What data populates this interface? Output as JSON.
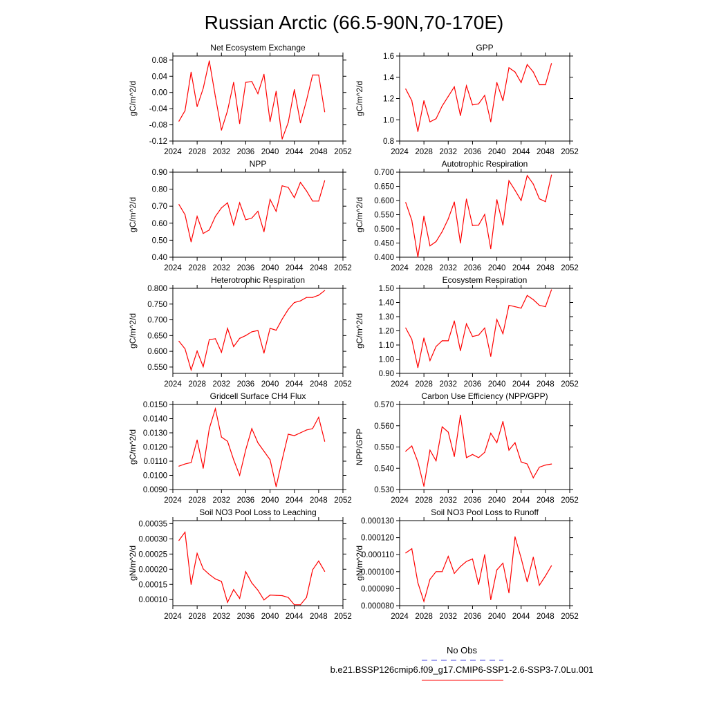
{
  "figure": {
    "title": "Russian Arctic (66.5-90N,70-170E)",
    "line_color": "#ff0000",
    "obs_color": "#4a4ae0"
  },
  "legend": {
    "obs_label": "No Obs",
    "case_label": "b.e21.BSSP126cmip6.f09_g17.CMIP6-SSP1-2.6-SSP3-7.0Lu.001"
  },
  "chart_data": [
    {
      "type": "line",
      "title": "Net Ecosystem Exchange",
      "ylabel": "gC/m^2/d",
      "xlim": [
        2024,
        2052
      ],
      "ylim": [
        -0.12,
        0.09
      ],
      "yticks": [
        "-0.12",
        "-0.08",
        "-0.04",
        "0.00",
        "0.04",
        "0.08"
      ],
      "xticks": [
        "2024",
        "2028",
        "2032",
        "2036",
        "2040",
        "2044",
        "2048",
        "2052"
      ],
      "x": [
        2025,
        2026,
        2027,
        2028,
        2029,
        2030,
        2031,
        2032,
        2033,
        2034,
        2035,
        2036,
        2037,
        2038,
        2039,
        2040,
        2041,
        2042,
        2043,
        2044,
        2045,
        2046,
        2047,
        2048,
        2049
      ],
      "y": [
        -0.071,
        -0.045,
        0.05,
        -0.035,
        0.01,
        0.078,
        -0.01,
        -0.093,
        -0.045,
        0.025,
        -0.077,
        0.025,
        0.027,
        -0.003,
        0.045,
        -0.072,
        0.003,
        -0.115,
        -0.074,
        0.007,
        -0.075,
        -0.02,
        0.043,
        0.043,
        -0.048
      ]
    },
    {
      "type": "line",
      "title": "GPP",
      "ylabel": "gC/m^2/d",
      "xlim": [
        2024,
        2052
      ],
      "ylim": [
        0.8,
        1.6
      ],
      "yticks": [
        "0.8",
        "1.0",
        "1.2",
        "1.4",
        "1.6"
      ],
      "xticks": [
        "2024",
        "2028",
        "2032",
        "2036",
        "2040",
        "2044",
        "2048",
        "2052"
      ],
      "x": [
        2025,
        2026,
        2027,
        2028,
        2029,
        2030,
        2031,
        2032,
        2033,
        2034,
        2035,
        2036,
        2037,
        2038,
        2039,
        2040,
        2041,
        2042,
        2043,
        2044,
        2045,
        2046,
        2047,
        2048,
        2049
      ],
      "y": [
        1.29,
        1.18,
        0.89,
        1.18,
        0.98,
        1.01,
        1.13,
        1.22,
        1.31,
        1.04,
        1.32,
        1.14,
        1.15,
        1.23,
        0.98,
        1.35,
        1.18,
        1.49,
        1.45,
        1.35,
        1.52,
        1.45,
        1.33,
        1.33,
        1.53
      ]
    },
    {
      "type": "line",
      "title": "NPP",
      "ylabel": "gC/m^2/d",
      "xlim": [
        2024,
        2052
      ],
      "ylim": [
        0.4,
        0.9
      ],
      "yticks": [
        "0.40",
        "0.50",
        "0.60",
        "0.70",
        "0.80",
        "0.90"
      ],
      "xticks": [
        "2024",
        "2028",
        "2032",
        "2036",
        "2040",
        "2044",
        "2048",
        "2052"
      ],
      "x": [
        2025,
        2026,
        2027,
        2028,
        2029,
        2030,
        2031,
        2032,
        2033,
        2034,
        2035,
        2036,
        2037,
        2038,
        2039,
        2040,
        2041,
        2042,
        2043,
        2044,
        2045,
        2046,
        2047,
        2048,
        2049
      ],
      "y": [
        0.71,
        0.65,
        0.49,
        0.64,
        0.54,
        0.56,
        0.64,
        0.69,
        0.72,
        0.59,
        0.72,
        0.62,
        0.63,
        0.67,
        0.55,
        0.74,
        0.67,
        0.82,
        0.81,
        0.75,
        0.84,
        0.79,
        0.73,
        0.73,
        0.85
      ]
    },
    {
      "type": "line",
      "title": "Autotrophic Respiration",
      "ylabel": "gC/m^2/d",
      "xlim": [
        2024,
        2052
      ],
      "ylim": [
        0.4,
        0.7
      ],
      "yticks": [
        "0.400",
        "0.450",
        "0.500",
        "0.550",
        "0.600",
        "0.650",
        "0.700"
      ],
      "xticks": [
        "2024",
        "2028",
        "2032",
        "2036",
        "2040",
        "2044",
        "2048",
        "2052"
      ],
      "x": [
        2025,
        2026,
        2027,
        2028,
        2029,
        2030,
        2031,
        2032,
        2033,
        2034,
        2035,
        2036,
        2037,
        2038,
        2039,
        2040,
        2041,
        2042,
        2043,
        2044,
        2045,
        2046,
        2047,
        2048,
        2049
      ],
      "y": [
        0.593,
        0.53,
        0.4,
        0.545,
        0.44,
        0.455,
        0.49,
        0.535,
        0.595,
        0.45,
        0.605,
        0.512,
        0.513,
        0.551,
        0.43,
        0.603,
        0.513,
        0.67,
        0.636,
        0.6,
        0.688,
        0.658,
        0.606,
        0.596,
        0.69
      ]
    },
    {
      "type": "line",
      "title": "Heterotrophic Respiration",
      "ylabel": "gC/m^2/d",
      "xlim": [
        2024,
        2052
      ],
      "ylim": [
        0.53,
        0.8
      ],
      "yticks": [
        "0.550",
        "0.600",
        "0.650",
        "0.700",
        "0.750",
        "0.800"
      ],
      "xticks": [
        "2024",
        "2028",
        "2032",
        "2036",
        "2040",
        "2044",
        "2048",
        "2052"
      ],
      "x": [
        2025,
        2026,
        2027,
        2028,
        2029,
        2030,
        2031,
        2032,
        2033,
        2034,
        2035,
        2036,
        2037,
        2038,
        2039,
        2040,
        2041,
        2042,
        2043,
        2044,
        2045,
        2046,
        2047,
        2048,
        2049
      ],
      "y": [
        0.632,
        0.608,
        0.541,
        0.601,
        0.551,
        0.637,
        0.64,
        0.597,
        0.673,
        0.615,
        0.641,
        0.65,
        0.662,
        0.666,
        0.594,
        0.673,
        0.667,
        0.702,
        0.733,
        0.755,
        0.76,
        0.771,
        0.771,
        0.778,
        0.793
      ]
    },
    {
      "type": "line",
      "title": "Ecosystem Respiration",
      "ylabel": "gC/m^2/d",
      "xlim": [
        2024,
        2052
      ],
      "ylim": [
        0.9,
        1.5
      ],
      "yticks": [
        "0.90",
        "1.00",
        "1.10",
        "1.20",
        "1.30",
        "1.40",
        "1.50"
      ],
      "xticks": [
        "2024",
        "2028",
        "2032",
        "2036",
        "2040",
        "2044",
        "2048",
        "2052"
      ],
      "x": [
        2025,
        2026,
        2027,
        2028,
        2029,
        2030,
        2031,
        2032,
        2033,
        2034,
        2035,
        2036,
        2037,
        2038,
        2039,
        2040,
        2041,
        2042,
        2043,
        2044,
        2045,
        2046,
        2047,
        2048,
        2049
      ],
      "y": [
        1.22,
        1.14,
        0.94,
        1.15,
        0.99,
        1.09,
        1.13,
        1.13,
        1.27,
        1.06,
        1.25,
        1.16,
        1.17,
        1.22,
        1.02,
        1.28,
        1.18,
        1.38,
        1.37,
        1.36,
        1.45,
        1.42,
        1.38,
        1.37,
        1.49
      ]
    },
    {
      "type": "line",
      "title": "Gridcell Surface CH4 Flux",
      "ylabel": "gC/m^2/d",
      "xlim": [
        2024,
        2052
      ],
      "ylim": [
        0.009,
        0.015
      ],
      "yticks": [
        "0.0090",
        "0.0100",
        "0.0110",
        "0.0120",
        "0.0130",
        "0.0140",
        "0.0150"
      ],
      "xticks": [
        "2024",
        "2028",
        "2032",
        "2036",
        "2040",
        "2044",
        "2048",
        "2052"
      ],
      "x": [
        2025,
        2026,
        2027,
        2028,
        2029,
        2030,
        2031,
        2032,
        2033,
        2034,
        2035,
        2036,
        2037,
        2038,
        2039,
        2040,
        2041,
        2042,
        2043,
        2044,
        2045,
        2046,
        2047,
        2048,
        2049
      ],
      "y": [
        0.01065,
        0.0108,
        0.0109,
        0.0125,
        0.0105,
        0.0133,
        0.0147,
        0.0127,
        0.0124,
        0.0111,
        0.01,
        0.0118,
        0.0133,
        0.0123,
        0.0117,
        0.0111,
        0.0092,
        0.0111,
        0.0129,
        0.0128,
        0.013,
        0.0132,
        0.0133,
        0.0141,
        0.0124
      ]
    },
    {
      "type": "line",
      "title": "Carbon Use Efficiency (NPP/GPP)",
      "ylabel": "NPP/GPP",
      "xlim": [
        2024,
        2052
      ],
      "ylim": [
        0.53,
        0.57
      ],
      "yticks": [
        "0.530",
        "0.540",
        "0.550",
        "0.560",
        "0.570"
      ],
      "xticks": [
        "2024",
        "2028",
        "2032",
        "2036",
        "2040",
        "2044",
        "2048",
        "2052"
      ],
      "x": [
        2025,
        2026,
        2027,
        2028,
        2029,
        2030,
        2031,
        2032,
        2033,
        2034,
        2035,
        2036,
        2037,
        2038,
        2039,
        2040,
        2041,
        2042,
        2043,
        2044,
        2045,
        2046,
        2047,
        2048,
        2049
      ],
      "y": [
        0.548,
        0.5505,
        0.543,
        0.5315,
        0.5485,
        0.5435,
        0.5595,
        0.557,
        0.5455,
        0.565,
        0.545,
        0.5465,
        0.545,
        0.5475,
        0.5565,
        0.552,
        0.562,
        0.5485,
        0.552,
        0.543,
        0.542,
        0.5355,
        0.5405,
        0.5415,
        0.542
      ]
    },
    {
      "type": "line",
      "title": "Soil NO3 Pool Loss to Leaching",
      "ylabel": "gN/m^2/d",
      "xlim": [
        2024,
        2052
      ],
      "ylim": [
        8e-05,
        0.00036
      ],
      "yticks": [
        "0.00010",
        "0.00015",
        "0.00020",
        "0.00025",
        "0.00030",
        "0.00035"
      ],
      "xticks": [
        "2024",
        "2028",
        "2032",
        "2036",
        "2040",
        "2044",
        "2048",
        "2052"
      ],
      "x": [
        2025,
        2026,
        2027,
        2028,
        2029,
        2030,
        2031,
        2032,
        2033,
        2034,
        2035,
        2036,
        2037,
        2038,
        2039,
        2040,
        2041,
        2042,
        2043,
        2044,
        2045,
        2046,
        2047,
        2048,
        2049
      ],
      "y": [
        0.000295,
        0.000322,
        0.00015,
        0.000252,
        0.000201,
        0.000183,
        0.000168,
        0.00016,
        9.1e-05,
        0.000133,
        0.000104,
        0.000192,
        0.000155,
        0.000131,
        9.9e-05,
        0.000115,
        0.000114,
        0.000113,
        0.000107,
        8.3e-05,
        8.3e-05,
        0.000107,
        0.000198,
        0.000227,
        0.000193
      ]
    },
    {
      "type": "line",
      "title": "Soil NO3 Pool Loss to Runoff",
      "ylabel": "gN/m^2/d",
      "xlim": [
        2024,
        2052
      ],
      "ylim": [
        8e-05,
        0.00013
      ],
      "yticks": [
        "0.000080",
        "0.000090",
        "0.000100",
        "0.000110",
        "0.000120",
        "0.000130"
      ],
      "xticks": [
        "2024",
        "2028",
        "2032",
        "2036",
        "2040",
        "2044",
        "2048",
        "2052"
      ],
      "x": [
        2025,
        2026,
        2027,
        2028,
        2029,
        2030,
        2031,
        2032,
        2033,
        2034,
        2035,
        2036,
        2037,
        2038,
        2039,
        2040,
        2041,
        2042,
        2043,
        2044,
        2045,
        2046,
        2047,
        2048,
        2049
      ],
      "y": [
        0.000111,
        0.0001135,
        9.35e-05,
        8.25e-05,
        9.55e-05,
        0.0001,
        0.0001,
        0.000109,
        9.9e-05,
        0.000103,
        0.000106,
        0.0001075,
        9.25e-05,
        0.00011,
        8.35e-05,
        0.000101,
        0.000105,
        8.75e-05,
        0.0001205,
        0.000108,
        9.4e-05,
        0.0001085,
        9.2e-05,
        9.75e-05,
        0.0001035
      ]
    }
  ]
}
